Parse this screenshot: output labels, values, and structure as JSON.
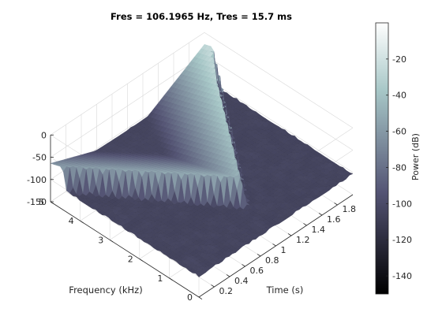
{
  "chart_data": {
    "type": "surface3d",
    "title": "Fres = 106.1965 Hz, Tres = 15.7 ms",
    "xlabel": "Time (s)",
    "ylabel": "Frequency (kHz)",
    "zlabel": "",
    "colorbar_label": "Power (dB)",
    "colormap": "bone",
    "xlim": [
      0,
      2.0
    ],
    "ylim": [
      0,
      5
    ],
    "zlim": [
      -150,
      0
    ],
    "clim": [
      -150,
      0
    ],
    "x_ticks": [
      "0.2",
      "0.4",
      "0.6",
      "0.8",
      "1",
      "1.2",
      "1.4",
      "1.6",
      "1.8"
    ],
    "y_ticks": [
      "0",
      "1",
      "2",
      "3",
      "4",
      "5"
    ],
    "z_ticks": [
      "0",
      "-50",
      "-100",
      "-150"
    ],
    "colorbar_ticks": [
      "-20",
      "-40",
      "-60",
      "-80",
      "-100",
      "-120",
      "-140"
    ],
    "grid": true,
    "noise_floor_db": -105,
    "ridges": [
      {
        "points": [
          {
            "time_s": 0.0,
            "freq_khz": 4.6,
            "power_db": -55
          },
          {
            "time_s": 1.0,
            "freq_khz": 1.1,
            "power_db": -45
          },
          {
            "time_s": 2.0,
            "freq_khz": 4.7,
            "power_db": -20
          }
        ]
      }
    ]
  }
}
